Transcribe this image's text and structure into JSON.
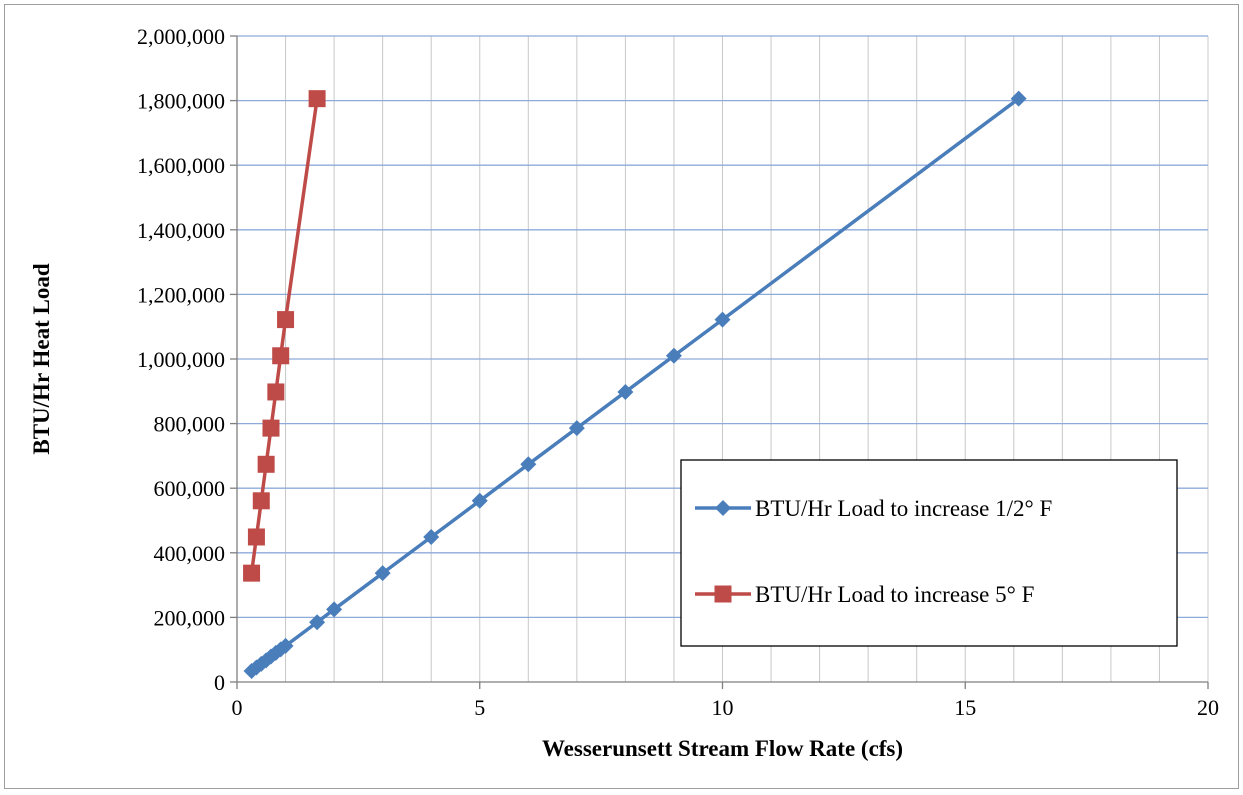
{
  "chart_data": {
    "type": "scatter",
    "title": "",
    "xlabel": "Wesserunsett Stream Flow Rate (cfs)",
    "ylabel": "BTU/Hr Heat Load",
    "xlim": [
      0,
      20
    ],
    "ylim": [
      0,
      2000000
    ],
    "x_ticks": [
      0,
      5,
      10,
      15,
      20
    ],
    "x_minor_grid_step": 1,
    "y_ticks": [
      0,
      200000,
      400000,
      600000,
      800000,
      1000000,
      1200000,
      1400000,
      1600000,
      1800000,
      2000000
    ],
    "x_tick_labels": [
      "0",
      "5",
      "10",
      "15",
      "20"
    ],
    "y_tick_labels": [
      "0",
      "200,000",
      "400,000",
      "600,000",
      "800,000",
      "1,000,000",
      "1,200,000",
      "1,400,000",
      "1,600,000",
      "1,800,000",
      "2,000,000"
    ],
    "grid": true,
    "legend_position": "lower-right",
    "series": [
      {
        "name": "BTU/Hr Load to increase 1/2° F",
        "color": "#4a7ebb",
        "marker": "diamond",
        "x": [
          0.3,
          0.4,
          0.5,
          0.6,
          0.7,
          0.8,
          0.9,
          1.0,
          1.65,
          2.0,
          3.0,
          4.0,
          5.0,
          6.0,
          7.0,
          8.0,
          9.0,
          10.0,
          16.1
        ],
        "y": [
          34000,
          45000,
          56000,
          67000,
          79000,
          90000,
          101000,
          112000,
          185000,
          225000,
          337000,
          449000,
          561000,
          674000,
          786000,
          898000,
          1010000,
          1122000,
          1806000
        ]
      },
      {
        "name": "BTU/Hr Load to increase 5° F",
        "color": "#be4b48",
        "marker": "square",
        "x": [
          0.3,
          0.4,
          0.5,
          0.6,
          0.7,
          0.8,
          0.9,
          1.0,
          1.65
        ],
        "y": [
          337000,
          449000,
          561000,
          674000,
          786000,
          898000,
          1010000,
          1122000,
          1806000
        ]
      }
    ]
  }
}
